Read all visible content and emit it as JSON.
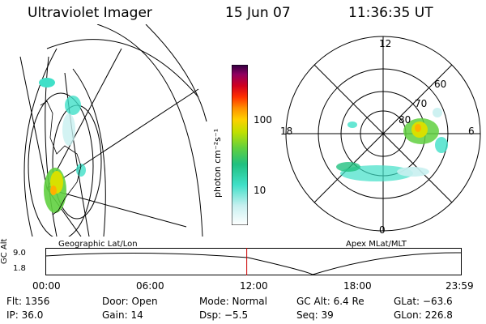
{
  "header": {
    "instrument": "Ultraviolet Imager",
    "date": "15 Jun 07",
    "time": "11:36:35 UT"
  },
  "colorbar": {
    "unit_label": "photon cm⁻²s⁻¹",
    "ticks": [
      "100",
      "10"
    ],
    "colors": [
      "#ffffff",
      "#c8f0f0",
      "#40e0c8",
      "#20c080",
      "#60d040",
      "#c0e000",
      "#ffd000",
      "#ff9000",
      "#ff3000",
      "#d00020",
      "#900060",
      "#300040"
    ]
  },
  "left_panel": {
    "caption": "Geographic Lat/Lon"
  },
  "right_panel": {
    "caption": "Apex MLat/MLT",
    "mlt_labels": {
      "top": "12",
      "left": "18",
      "right": "6",
      "bottom": "0"
    },
    "lat_labels": [
      "60",
      "70",
      "80"
    ]
  },
  "altitude_plot": {
    "ylabel": "GC Alt",
    "yticks": [
      "9.0",
      "1.8"
    ],
    "xticks": [
      "00:00",
      "06:00",
      "12:00",
      "18:00",
      "23:59"
    ],
    "current_time_fraction": 0.4837
  },
  "status": {
    "row1": {
      "flt": "Flt: 1356",
      "door": "Door: Open",
      "mode": "Mode: Normal",
      "gcalt": "GC Alt: 6.4 Re",
      "glat": "GLat: −63.6"
    },
    "row2": {
      "ip": "IP: 36.0",
      "gain": "Gain: 14",
      "dsp": "Dsp:    −5.5",
      "seq": "Seq: 39",
      "glon": "GLon: 226.8"
    }
  }
}
